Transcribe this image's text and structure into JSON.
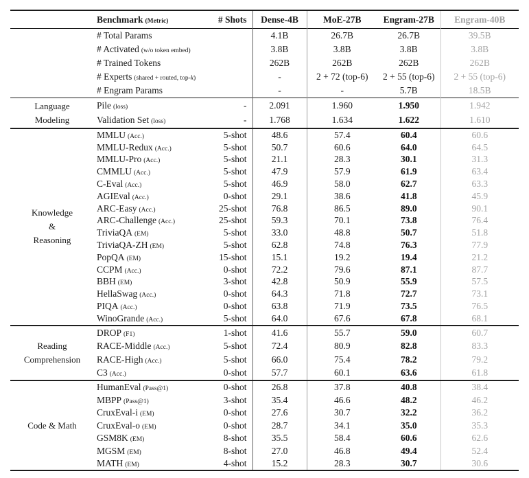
{
  "header": {
    "benchmark_label": "Benchmark",
    "metric_label": "(Metric)",
    "shots_label": "# Shots",
    "columns": [
      "Dense-4B",
      "MoE-27B",
      "Engram-27B",
      "Engram-40B"
    ]
  },
  "colors": {
    "text": "#1a1a1a",
    "muted_column": "#a2a2a2",
    "rule": "#1a1a1a",
    "vline_after_shots": "#5f5f5f",
    "vline_after_dense": "#9c9c9c",
    "vline_before_engram40": "#c9c9c9"
  },
  "sections": [
    {
      "id": "model-config",
      "row_class": "params",
      "group_lines": [],
      "bold_engram27": false,
      "rows": [
        {
          "name": "# Total Params",
          "metric": "",
          "shots": "",
          "values": [
            "4.1B",
            "26.7B",
            "26.7B",
            "39.5B"
          ]
        },
        {
          "name": "# Activated",
          "metric": "(w/o token embed)",
          "shots": "",
          "values": [
            "3.8B",
            "3.8B",
            "3.8B",
            "3.8B"
          ]
        },
        {
          "name": "# Trained Tokens",
          "metric": "",
          "shots": "",
          "values": [
            "262B",
            "262B",
            "262B",
            "262B"
          ]
        },
        {
          "name": "# Experts",
          "metric": "(shared + routed, top-k)",
          "shots": "",
          "values": [
            "-",
            "2 + 72 (top-6)",
            "2 + 55 (top-6)",
            "2 + 55 (top-6)"
          ]
        },
        {
          "name": "# Engram Params",
          "metric": "",
          "shots": "",
          "values": [
            "-",
            "-",
            "5.7B",
            "18.5B"
          ]
        }
      ]
    },
    {
      "id": "language-modeling",
      "row_class": "lm",
      "group_lines": [
        "Language",
        "Modeling"
      ],
      "bold_engram27": true,
      "rows": [
        {
          "name": "Pile",
          "metric": "(loss)",
          "shots": "-",
          "values": [
            "2.091",
            "1.960",
            "1.950",
            "1.942"
          ]
        },
        {
          "name": "Validation Set",
          "metric": "(loss)",
          "shots": "-",
          "values": [
            "1.768",
            "1.634",
            "1.622",
            "1.610"
          ]
        }
      ]
    },
    {
      "id": "knowledge-reasoning",
      "row_class": "kr",
      "group_lines": [
        "Knowledge",
        "&",
        "Reasoning"
      ],
      "bold_engram27": true,
      "rows": [
        {
          "name": "MMLU",
          "metric": "(Acc.)",
          "shots": "5-shot",
          "values": [
            "48.6",
            "57.4",
            "60.4",
            "60.6"
          ]
        },
        {
          "name": "MMLU-Redux",
          "metric": "(Acc.)",
          "shots": "5-shot",
          "values": [
            "50.7",
            "60.6",
            "64.0",
            "64.5"
          ]
        },
        {
          "name": "MMLU-Pro",
          "metric": "(Acc.)",
          "shots": "5-shot",
          "values": [
            "21.1",
            "28.3",
            "30.1",
            "31.3"
          ]
        },
        {
          "name": "CMMLU",
          "metric": "(Acc.)",
          "shots": "5-shot",
          "values": [
            "47.9",
            "57.9",
            "61.9",
            "63.4"
          ]
        },
        {
          "name": "C-Eval",
          "metric": "(Acc.)",
          "shots": "5-shot",
          "values": [
            "46.9",
            "58.0",
            "62.7",
            "63.3"
          ]
        },
        {
          "name": "AGIEval",
          "metric": "(Acc.)",
          "shots": "0-shot",
          "values": [
            "29.1",
            "38.6",
            "41.8",
            "45.9"
          ]
        },
        {
          "name": "ARC-Easy",
          "metric": "(Acc.)",
          "shots": "25-shot",
          "values": [
            "76.8",
            "86.5",
            "89.0",
            "90.1"
          ]
        },
        {
          "name": "ARC-Challenge",
          "metric": "(Acc.)",
          "shots": "25-shot",
          "values": [
            "59.3",
            "70.1",
            "73.8",
            "76.4"
          ]
        },
        {
          "name": "TriviaQA",
          "metric": "(EM)",
          "shots": "5-shot",
          "values": [
            "33.0",
            "48.8",
            "50.7",
            "51.8"
          ]
        },
        {
          "name": "TriviaQA-ZH",
          "metric": "(EM)",
          "shots": "5-shot",
          "values": [
            "62.8",
            "74.8",
            "76.3",
            "77.9"
          ]
        },
        {
          "name": "PopQA",
          "metric": "(EM)",
          "shots": "15-shot",
          "values": [
            "15.1",
            "19.2",
            "19.4",
            "21.2"
          ]
        },
        {
          "name": "CCPM",
          "metric": "(Acc.)",
          "shots": "0-shot",
          "values": [
            "72.2",
            "79.6",
            "87.1",
            "87.7"
          ]
        },
        {
          "name": "BBH",
          "metric": "(EM)",
          "shots": "3-shot",
          "values": [
            "42.8",
            "50.9",
            "55.9",
            "57.5"
          ]
        },
        {
          "name": "HellaSwag",
          "metric": "(Acc.)",
          "shots": "0-shot",
          "values": [
            "64.3",
            "71.8",
            "72.7",
            "73.1"
          ]
        },
        {
          "name": "PIQA",
          "metric": "(Acc.)",
          "shots": "0-shot",
          "values": [
            "63.8",
            "71.9",
            "73.5",
            "76.5"
          ]
        },
        {
          "name": "WinoGrande",
          "metric": "(Acc.)",
          "shots": "5-shot",
          "values": [
            "64.0",
            "67.6",
            "67.8",
            "68.1"
          ]
        }
      ]
    },
    {
      "id": "reading-comprehension",
      "row_class": "rc",
      "group_lines": [
        "Reading",
        "Comprehension"
      ],
      "bold_engram27": true,
      "rows": [
        {
          "name": "DROP",
          "metric": "(F1)",
          "shots": "1-shot",
          "values": [
            "41.6",
            "55.7",
            "59.0",
            "60.7"
          ]
        },
        {
          "name": "RACE-Middle",
          "metric": "(Acc.)",
          "shots": "5-shot",
          "values": [
            "72.4",
            "80.9",
            "82.8",
            "83.3"
          ]
        },
        {
          "name": "RACE-High",
          "metric": "(Acc.)",
          "shots": "5-shot",
          "values": [
            "66.0",
            "75.4",
            "78.2",
            "79.2"
          ]
        },
        {
          "name": "C3",
          "metric": "(Acc.)",
          "shots": "0-shot",
          "values": [
            "57.7",
            "60.1",
            "63.6",
            "61.8"
          ]
        }
      ]
    },
    {
      "id": "code-math",
      "row_class": "cm",
      "group_lines": [
        "Code & Math"
      ],
      "bold_engram27": true,
      "rows": [
        {
          "name": "HumanEval",
          "metric": "(Pass@1)",
          "shots": "0-shot",
          "values": [
            "26.8",
            "37.8",
            "40.8",
            "38.4"
          ]
        },
        {
          "name": "MBPP",
          "metric": "(Pass@1)",
          "shots": "3-shot",
          "values": [
            "35.4",
            "46.6",
            "48.2",
            "46.2"
          ]
        },
        {
          "name": "CruxEval-i",
          "metric": "(EM)",
          "shots": "0-shot",
          "values": [
            "27.6",
            "30.7",
            "32.2",
            "36.2"
          ]
        },
        {
          "name": "CruxEval-o",
          "metric": "(EM)",
          "shots": "0-shot",
          "values": [
            "28.7",
            "34.1",
            "35.0",
            "35.3"
          ]
        },
        {
          "name": "GSM8K",
          "metric": "(EM)",
          "shots": "8-shot",
          "values": [
            "35.5",
            "58.4",
            "60.6",
            "62.6"
          ]
        },
        {
          "name": "MGSM",
          "metric": "(EM)",
          "shots": "8-shot",
          "values": [
            "27.0",
            "46.8",
            "49.4",
            "52.4"
          ]
        },
        {
          "name": "MATH",
          "metric": "(EM)",
          "shots": "4-shot",
          "values": [
            "15.2",
            "28.3",
            "30.7",
            "30.6"
          ]
        }
      ]
    }
  ]
}
